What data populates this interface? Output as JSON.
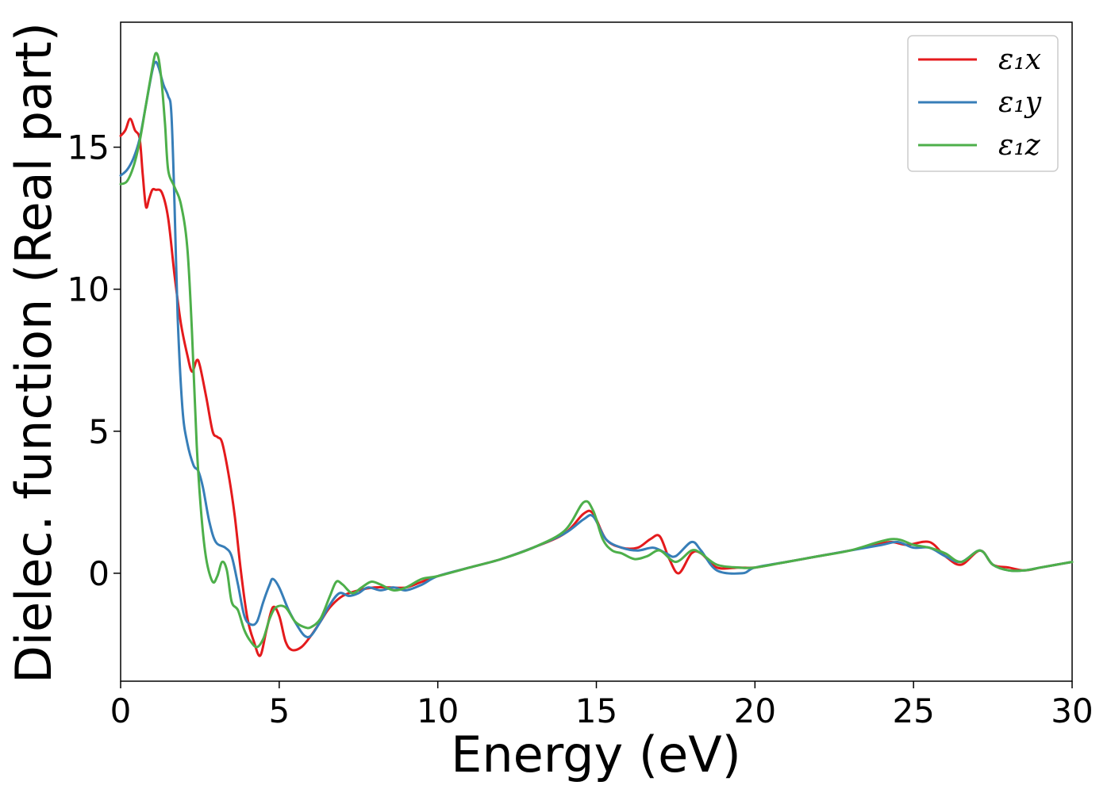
{
  "chart_data": {
    "type": "line",
    "title": "",
    "xlabel": "Energy (eV)",
    "ylabel": "Dielec. function (Real part)",
    "xlim": [
      0,
      30
    ],
    "ylim": [
      -3.8,
      19.4
    ],
    "xticks": [
      0,
      5,
      10,
      15,
      20,
      25,
      30
    ],
    "yticks": [
      0,
      5,
      10,
      15
    ],
    "grid": false,
    "legend_position": "top-right",
    "series": [
      {
        "name": "ε₁x",
        "color": "#e41a1c",
        "points": [
          [
            0,
            15.4
          ],
          [
            0.15,
            15.6
          ],
          [
            0.3,
            16.0
          ],
          [
            0.45,
            15.6
          ],
          [
            0.6,
            15.3
          ],
          [
            0.7,
            14.0
          ],
          [
            0.8,
            12.9
          ],
          [
            0.9,
            13.2
          ],
          [
            1.0,
            13.5
          ],
          [
            1.1,
            13.5
          ],
          [
            1.3,
            13.4
          ],
          [
            1.5,
            12.5
          ],
          [
            1.7,
            10.5
          ],
          [
            1.9,
            8.8
          ],
          [
            2.1,
            7.7
          ],
          [
            2.25,
            7.1
          ],
          [
            2.4,
            7.5
          ],
          [
            2.5,
            7.3
          ],
          [
            2.7,
            6.2
          ],
          [
            2.9,
            5.0
          ],
          [
            3.05,
            4.8
          ],
          [
            3.2,
            4.6
          ],
          [
            3.4,
            3.5
          ],
          [
            3.6,
            2.0
          ],
          [
            3.8,
            0.0
          ],
          [
            4.0,
            -1.6
          ],
          [
            4.2,
            -2.4
          ],
          [
            4.4,
            -2.9
          ],
          [
            4.6,
            -2.0
          ],
          [
            4.8,
            -1.2
          ],
          [
            5.0,
            -1.5
          ],
          [
            5.2,
            -2.4
          ],
          [
            5.4,
            -2.7
          ],
          [
            5.7,
            -2.6
          ],
          [
            6.0,
            -2.2
          ],
          [
            6.3,
            -1.7
          ],
          [
            6.6,
            -1.2
          ],
          [
            7.0,
            -0.8
          ],
          [
            7.5,
            -0.6
          ],
          [
            8.0,
            -0.5
          ],
          [
            8.5,
            -0.5
          ],
          [
            9.0,
            -0.5
          ],
          [
            9.5,
            -0.3
          ],
          [
            10.0,
            -0.1
          ],
          [
            11.0,
            0.2
          ],
          [
            12.0,
            0.5
          ],
          [
            13.0,
            0.9
          ],
          [
            14.0,
            1.4
          ],
          [
            14.6,
            2.1
          ],
          [
            14.9,
            2.1
          ],
          [
            15.3,
            1.2
          ],
          [
            15.8,
            0.9
          ],
          [
            16.3,
            0.9
          ],
          [
            16.7,
            1.2
          ],
          [
            17.0,
            1.3
          ],
          [
            17.3,
            0.5
          ],
          [
            17.6,
            0.0
          ],
          [
            18.0,
            0.7
          ],
          [
            18.3,
            0.7
          ],
          [
            18.8,
            0.2
          ],
          [
            19.5,
            0.2
          ],
          [
            20.0,
            0.2
          ],
          [
            20.5,
            0.3
          ],
          [
            21.0,
            0.4
          ],
          [
            22.0,
            0.6
          ],
          [
            23.0,
            0.8
          ],
          [
            23.8,
            1.0
          ],
          [
            24.3,
            1.1
          ],
          [
            24.8,
            1.0
          ],
          [
            25.5,
            1.1
          ],
          [
            26.0,
            0.6
          ],
          [
            26.5,
            0.3
          ],
          [
            27.1,
            0.8
          ],
          [
            27.5,
            0.3
          ],
          [
            28.0,
            0.2
          ],
          [
            28.5,
            0.1
          ],
          [
            29.0,
            0.2
          ],
          [
            29.5,
            0.3
          ],
          [
            30.0,
            0.4
          ]
        ]
      },
      {
        "name": "ε₁y",
        "color": "#377eb8",
        "points": [
          [
            0,
            14.0
          ],
          [
            0.2,
            14.2
          ],
          [
            0.4,
            14.6
          ],
          [
            0.6,
            15.3
          ],
          [
            0.8,
            16.5
          ],
          [
            1.0,
            17.7
          ],
          [
            1.1,
            18.0
          ],
          [
            1.2,
            17.8
          ],
          [
            1.35,
            17.2
          ],
          [
            1.5,
            16.8
          ],
          [
            1.6,
            16.2
          ],
          [
            1.7,
            13.0
          ],
          [
            1.8,
            9.0
          ],
          [
            1.95,
            5.8
          ],
          [
            2.1,
            4.6
          ],
          [
            2.3,
            3.8
          ],
          [
            2.45,
            3.6
          ],
          [
            2.6,
            3.0
          ],
          [
            2.8,
            1.8
          ],
          [
            3.0,
            1.1
          ],
          [
            3.3,
            0.9
          ],
          [
            3.5,
            0.6
          ],
          [
            3.7,
            -0.4
          ],
          [
            3.9,
            -1.5
          ],
          [
            4.1,
            -1.8
          ],
          [
            4.3,
            -1.7
          ],
          [
            4.5,
            -1.0
          ],
          [
            4.7,
            -0.4
          ],
          [
            4.8,
            -0.2
          ],
          [
            5.0,
            -0.5
          ],
          [
            5.3,
            -1.3
          ],
          [
            5.6,
            -1.9
          ],
          [
            5.8,
            -2.2
          ],
          [
            6.0,
            -2.2
          ],
          [
            6.3,
            -1.7
          ],
          [
            6.6,
            -1.1
          ],
          [
            6.9,
            -0.7
          ],
          [
            7.2,
            -0.8
          ],
          [
            7.5,
            -0.7
          ],
          [
            7.8,
            -0.5
          ],
          [
            8.2,
            -0.6
          ],
          [
            8.6,
            -0.5
          ],
          [
            9.0,
            -0.6
          ],
          [
            9.5,
            -0.4
          ],
          [
            10.0,
            -0.1
          ],
          [
            11.0,
            0.2
          ],
          [
            12.0,
            0.5
          ],
          [
            13.0,
            0.9
          ],
          [
            14.0,
            1.4
          ],
          [
            14.6,
            1.9
          ],
          [
            14.9,
            2.0
          ],
          [
            15.3,
            1.2
          ],
          [
            15.8,
            0.9
          ],
          [
            16.3,
            0.8
          ],
          [
            16.8,
            0.9
          ],
          [
            17.2,
            0.7
          ],
          [
            17.5,
            0.6
          ],
          [
            18.0,
            1.1
          ],
          [
            18.3,
            0.8
          ],
          [
            18.8,
            0.1
          ],
          [
            19.6,
            0.0
          ],
          [
            20.0,
            0.2
          ],
          [
            21.0,
            0.4
          ],
          [
            22.0,
            0.6
          ],
          [
            23.0,
            0.8
          ],
          [
            24.0,
            1.0
          ],
          [
            24.5,
            1.1
          ],
          [
            25.0,
            0.9
          ],
          [
            25.5,
            0.9
          ],
          [
            26.0,
            0.6
          ],
          [
            26.5,
            0.4
          ],
          [
            27.1,
            0.8
          ],
          [
            27.5,
            0.3
          ],
          [
            28.0,
            0.1
          ],
          [
            28.5,
            0.1
          ],
          [
            29.0,
            0.2
          ],
          [
            29.5,
            0.3
          ],
          [
            30.0,
            0.4
          ]
        ]
      },
      {
        "name": "ε₁z",
        "color": "#4daf4a",
        "points": [
          [
            0,
            13.7
          ],
          [
            0.2,
            13.8
          ],
          [
            0.4,
            14.3
          ],
          [
            0.6,
            15.2
          ],
          [
            0.8,
            16.5
          ],
          [
            1.0,
            17.8
          ],
          [
            1.1,
            18.3
          ],
          [
            1.2,
            18.1
          ],
          [
            1.3,
            17.2
          ],
          [
            1.4,
            15.8
          ],
          [
            1.5,
            14.2
          ],
          [
            1.7,
            13.6
          ],
          [
            1.9,
            13.0
          ],
          [
            2.1,
            11.5
          ],
          [
            2.25,
            8.5
          ],
          [
            2.4,
            4.5
          ],
          [
            2.55,
            2.0
          ],
          [
            2.7,
            0.5
          ],
          [
            2.9,
            -0.3
          ],
          [
            3.05,
            -0.1
          ],
          [
            3.2,
            0.4
          ],
          [
            3.35,
            0.1
          ],
          [
            3.5,
            -1.0
          ],
          [
            3.7,
            -1.3
          ],
          [
            3.9,
            -2.0
          ],
          [
            4.1,
            -2.4
          ],
          [
            4.3,
            -2.6
          ],
          [
            4.5,
            -2.3
          ],
          [
            4.7,
            -1.6
          ],
          [
            4.9,
            -1.2
          ],
          [
            5.2,
            -1.2
          ],
          [
            5.5,
            -1.7
          ],
          [
            5.8,
            -1.9
          ],
          [
            6.0,
            -1.9
          ],
          [
            6.3,
            -1.6
          ],
          [
            6.6,
            -0.8
          ],
          [
            6.8,
            -0.3
          ],
          [
            7.0,
            -0.4
          ],
          [
            7.3,
            -0.7
          ],
          [
            7.6,
            -0.5
          ],
          [
            7.9,
            -0.3
          ],
          [
            8.2,
            -0.4
          ],
          [
            8.6,
            -0.6
          ],
          [
            9.0,
            -0.5
          ],
          [
            9.5,
            -0.2
          ],
          [
            10.0,
            -0.1
          ],
          [
            11.0,
            0.2
          ],
          [
            12.0,
            0.5
          ],
          [
            13.0,
            0.9
          ],
          [
            14.0,
            1.5
          ],
          [
            14.6,
            2.5
          ],
          [
            14.9,
            2.2
          ],
          [
            15.2,
            1.2
          ],
          [
            15.5,
            0.8
          ],
          [
            15.8,
            0.7
          ],
          [
            16.2,
            0.5
          ],
          [
            16.6,
            0.6
          ],
          [
            17.0,
            0.8
          ],
          [
            17.5,
            0.4
          ],
          [
            18.0,
            0.8
          ],
          [
            18.3,
            0.7
          ],
          [
            18.8,
            0.3
          ],
          [
            19.5,
            0.2
          ],
          [
            20.0,
            0.2
          ],
          [
            21.0,
            0.4
          ],
          [
            22.0,
            0.6
          ],
          [
            23.0,
            0.8
          ],
          [
            24.3,
            1.2
          ],
          [
            25.0,
            1.0
          ],
          [
            25.5,
            0.9
          ],
          [
            26.0,
            0.7
          ],
          [
            26.5,
            0.4
          ],
          [
            27.1,
            0.8
          ],
          [
            27.5,
            0.3
          ],
          [
            28.0,
            0.1
          ],
          [
            28.5,
            0.1
          ],
          [
            29.0,
            0.2
          ],
          [
            29.5,
            0.3
          ],
          [
            30.0,
            0.4
          ]
        ]
      }
    ]
  }
}
